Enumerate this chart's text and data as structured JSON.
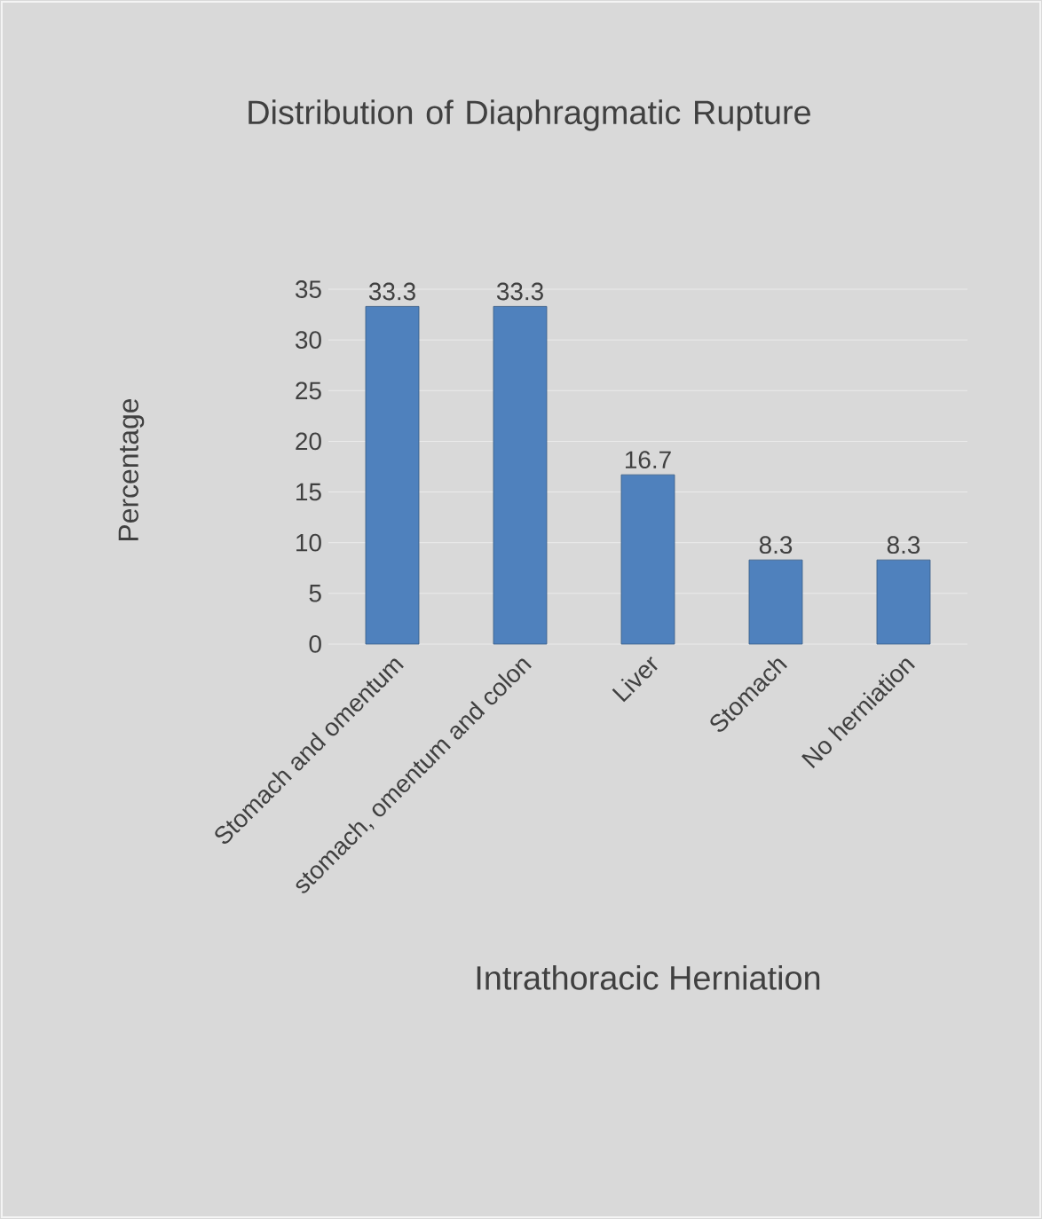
{
  "chart_data": {
    "type": "bar",
    "title": "Distribution of Diaphragmatic Rupture",
    "xlabel": "Intrathoracic Herniation",
    "ylabel": "Percentage",
    "categories": [
      "Stomach and omentum",
      "stomach, omentum and colon",
      "Liver",
      "Stomach",
      "No herniation"
    ],
    "values": [
      33.3,
      33.3,
      16.7,
      8.3,
      8.3
    ],
    "color": "#4f81bd",
    "ylim": [
      0,
      35
    ],
    "yticks": [
      0,
      5,
      10,
      15,
      20,
      25,
      30,
      35
    ],
    "grid": "y",
    "data_labels": true
  }
}
